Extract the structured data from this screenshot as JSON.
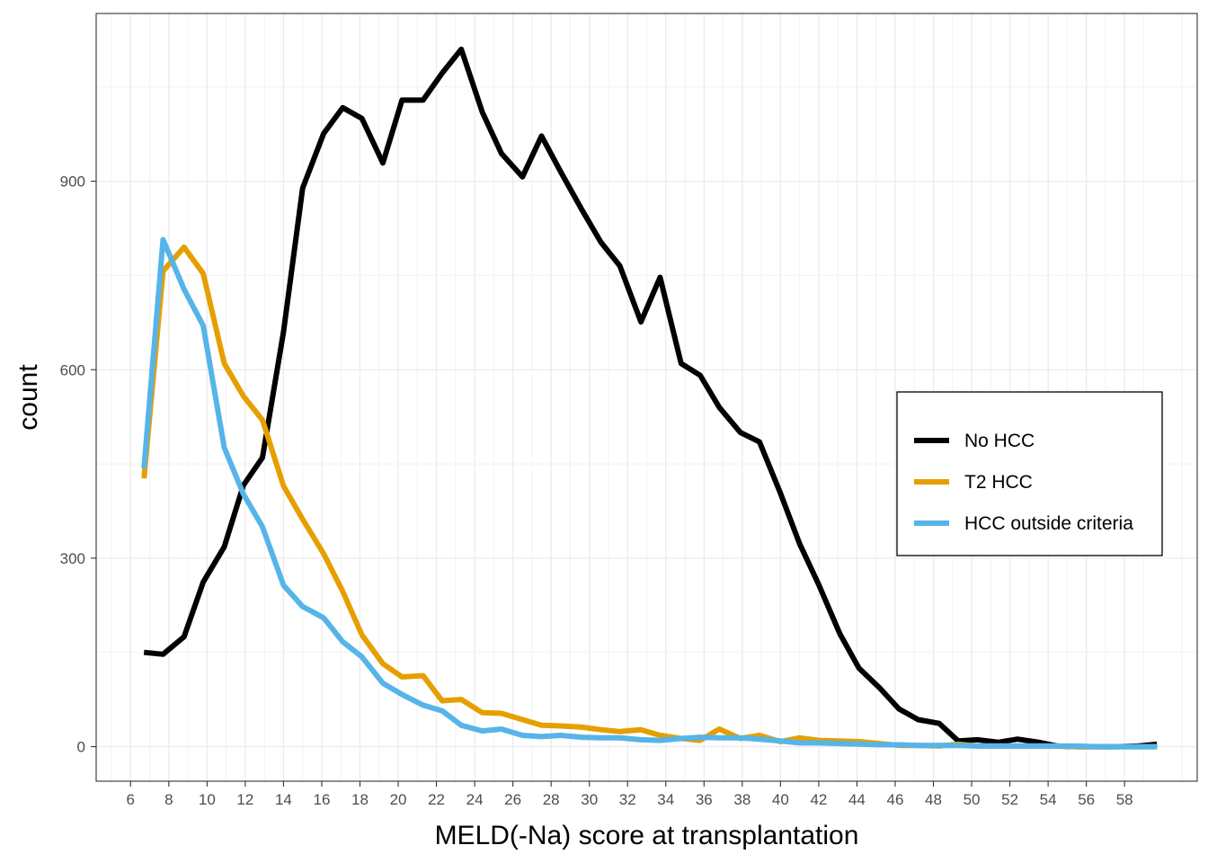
{
  "chart_data": {
    "type": "line",
    "xlabel": "MELD(-Na) score at transplantation",
    "ylabel": "count",
    "xlim": [
      4.2,
      61.8
    ],
    "ylim": [
      -55,
      1167
    ],
    "x_ticks": [
      6,
      8,
      10,
      12,
      14,
      16,
      18,
      20,
      22,
      24,
      26,
      28,
      30,
      32,
      34,
      36,
      38,
      40,
      42,
      44,
      46,
      48,
      50,
      52,
      54,
      56,
      58
    ],
    "y_ticks": [
      0,
      300,
      600,
      900
    ],
    "x_tick_labels": [
      "6",
      "8",
      "10",
      "12",
      "14",
      "16",
      "18",
      "20",
      "22",
      "24",
      "26",
      "28",
      "30",
      "32",
      "34",
      "36",
      "38",
      "40",
      "42",
      "44",
      "46",
      "48",
      "50",
      "52",
      "54",
      "56",
      "58"
    ],
    "y_tick_labels": [
      "0",
      "300",
      "600",
      "900"
    ],
    "grid": true,
    "legend_position": "right",
    "series": [
      {
        "name": "No HCC",
        "color": "#000000",
        "x": [
          6.7,
          7.7,
          8.8,
          9.8,
          10.9,
          11.9,
          12.9,
          14.0,
          15.0,
          16.1,
          17.1,
          18.1,
          19.2,
          20.2,
          21.3,
          22.3,
          23.3,
          24.4,
          25.4,
          26.5,
          27.5,
          28.5,
          29.6,
          30.6,
          31.6,
          32.7,
          33.7,
          34.8,
          35.8,
          36.8,
          37.9,
          38.9,
          40.0,
          41.0,
          42.0,
          43.1,
          44.1,
          45.2,
          46.2,
          47.2,
          48.3,
          49.3,
          50.3,
          51.4,
          52.4,
          53.5,
          54.5,
          55.5,
          56.6,
          57.6,
          58.7,
          59.7
        ],
        "y": [
          150,
          147,
          175,
          262,
          318,
          416,
          460,
          660,
          889,
          976,
          1017,
          1000,
          929,
          1029,
          1029,
          1072,
          1110,
          1010,
          944,
          907,
          972,
          915,
          855,
          803,
          765,
          676,
          747,
          610,
          591,
          540,
          500,
          485,
          403,
          323,
          258,
          180,
          125,
          93,
          60,
          43,
          37,
          9,
          11,
          7,
          12,
          7,
          1,
          0,
          0,
          0,
          1,
          4
        ]
      },
      {
        "name": "T2 HCC",
        "color": "#E69F00",
        "x": [
          6.7,
          7.7,
          8.8,
          9.8,
          10.9,
          11.9,
          12.9,
          14.0,
          15.0,
          16.1,
          17.1,
          18.1,
          19.2,
          20.2,
          21.3,
          22.3,
          23.3,
          24.4,
          25.4,
          26.5,
          27.5,
          28.5,
          29.6,
          30.6,
          31.6,
          32.7,
          33.7,
          34.8,
          35.8,
          36.8,
          37.9,
          38.9,
          40.0,
          41.0,
          42.0,
          43.1,
          44.1,
          45.2,
          46.2,
          47.2,
          48.3,
          49.3,
          50.3,
          51.4,
          52.4,
          53.5,
          54.5,
          55.5,
          56.6,
          57.6,
          58.7,
          59.7
        ],
        "y": [
          427,
          757,
          795,
          753,
          610,
          558,
          520,
          415,
          362,
          307,
          247,
          178,
          132,
          111,
          113,
          73,
          75,
          54,
          53,
          43,
          34,
          33,
          31,
          27,
          24,
          27,
          18,
          13,
          10,
          28,
          13,
          18,
          8,
          14,
          10,
          9,
          8,
          5,
          2,
          2,
          1,
          4,
          1,
          1,
          1,
          1,
          1,
          0,
          0,
          0,
          0,
          0
        ]
      },
      {
        "name": "HCC outside criteria",
        "color": "#56B4E9",
        "x": [
          6.7,
          7.7,
          8.8,
          9.8,
          10.9,
          11.9,
          12.9,
          14.0,
          15.0,
          16.1,
          17.1,
          18.1,
          19.2,
          20.2,
          21.3,
          22.3,
          23.3,
          24.4,
          25.4,
          26.5,
          27.5,
          28.5,
          29.6,
          30.6,
          31.6,
          32.7,
          33.7,
          34.8,
          35.8,
          36.8,
          37.9,
          38.9,
          40.0,
          41.0,
          42.0,
          43.1,
          44.1,
          45.2,
          46.2,
          47.2,
          48.3,
          49.3,
          50.3,
          51.4,
          52.4,
          53.5,
          54.5,
          55.5,
          56.6,
          57.6,
          58.7,
          59.7
        ],
        "y": [
          443,
          807,
          728,
          670,
          476,
          402,
          350,
          257,
          223,
          205,
          167,
          143,
          101,
          83,
          66,
          57,
          34,
          25,
          28,
          18,
          16,
          18,
          15,
          14,
          14,
          11,
          10,
          13,
          15,
          14,
          14,
          12,
          9,
          6,
          6,
          5,
          4,
          3,
          3,
          2,
          2,
          2,
          1,
          1,
          1,
          1,
          1,
          1,
          0,
          0,
          0,
          0
        ]
      }
    ]
  }
}
